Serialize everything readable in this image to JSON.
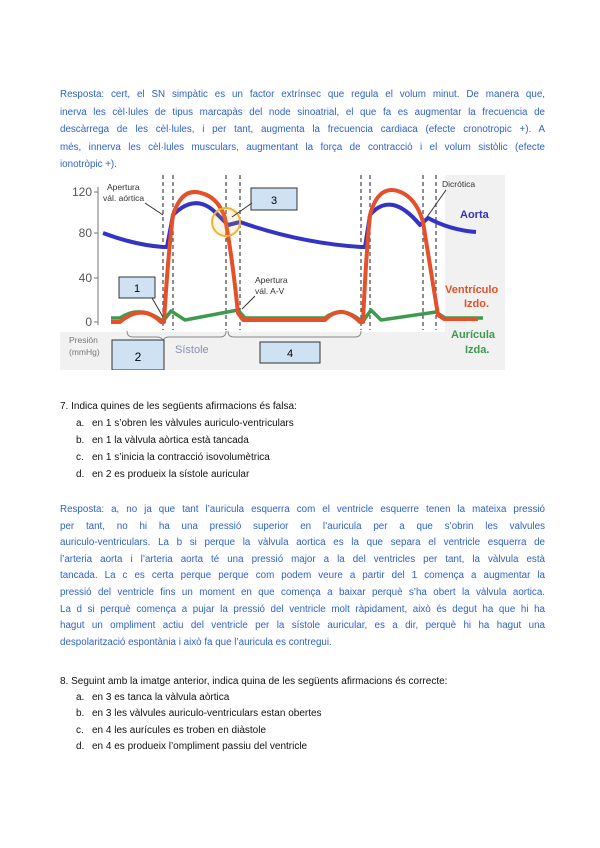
{
  "answer6": {
    "lines": [
      "Resposta: cert, el SN simpàtic es un factor extrínsec que regula el volum minut. De manera que,",
      "inerva les cèl·lules de tipus marcapàs del node sinoatrial, el que fa es augmentar la frecuencia de",
      "descàrrega de les cèl·lules, i per tant, augmenta la frecuencia cardiaca (efecte cronotropic +). A",
      "més, innerva les cèl·lules musculars, augmentant la força de contracció i el volum sistòlic (efecte",
      "ionotròpic +)."
    ]
  },
  "figure": {
    "y_ticks": [
      "120",
      "80",
      "40",
      "0"
    ],
    "y_label_1": "Presión",
    "y_label_2": "(mmHg)",
    "label_aortic_1": "Apertura",
    "label_aortic_2": "vál. aórtica",
    "label_av_1": "Apertura",
    "label_av_2": "vál. A-V",
    "label_dicrotic": "Dicrótica",
    "legend_aorta": "Aorta",
    "legend_ventricle_1": "Ventrículo",
    "legend_ventricle_2": "Izdo.",
    "legend_atrium_1": "Aurícula",
    "legend_atrium_2": "Izda.",
    "systole_label": "Sístole",
    "box_1": "1",
    "box_2": "2",
    "box_3": "3",
    "box_4": "4",
    "colors": {
      "aorta": "#3333c4",
      "ventricle": "#e4502a",
      "atrium": "#3f9a4f",
      "highlight": "#f2b233",
      "box": "#cfe2f3"
    }
  },
  "question7": {
    "title": "7. Indica quines de les següents afirmacions és falsa:",
    "options": [
      {
        "letter": "a.",
        "text": "en 1 s’obren les vàlvules auriculo-ventriculars"
      },
      {
        "letter": "b.",
        "text": "en 1 la vàlvula aòrtica està tancada"
      },
      {
        "letter": "c.",
        "text": "en 1 s’inicia la contracció isovolumètrica"
      },
      {
        "letter": "d.",
        "text": "en 2 es produeix la sístole auricular"
      }
    ]
  },
  "answer7": {
    "lines": [
      "Resposta: a, no ja que tant l’auricula esquerra com el ventricle esquerre tenen la mateixa pressió",
      "per tant, no hi ha una pressió superior en l’auricula per a que s’obrin les valvules",
      "auriculo-ventriculars. La b si perque la vàlvula aortica es la que separa el ventricle esquerra de",
      "l’arteria aorta i l’arteria aorta té una pressió major a la del ventricles per tant, la vàlvula està",
      "tancada. La c es certa perque perque com podem veure a partir del 1 comença a augmentar la",
      "pressió del ventricle fins un moment en que comença a baixar perquè s’ha obert la vàlvula aortica.",
      "La d si perquè comença a pujar la pressió del ventricle molt ràpidament, això és degut ha que hi ha",
      "hagut un ompliment actiu del ventricle per la sístole auricular, es a dir, perquè hi ha hagut una",
      "despolarització espontània i això fa que l’auricula es contregui."
    ]
  },
  "question8": {
    "title": "8. Seguint amb la imatge anterior, indica quina de les següents afirmacions és correcte:",
    "options": [
      {
        "letter": "a.",
        "text": "en 3 es tanca la vàlvula aòrtica"
      },
      {
        "letter": "b.",
        "text": "en 3 les vàlvules auriculo-ventriculars estan obertes"
      },
      {
        "letter": "c.",
        "text": "en 4 les aurícules es troben en diàstole"
      },
      {
        "letter": "d.",
        "text": "en 4 es produeix l’ompliment passiu del ventricle"
      }
    ]
  }
}
